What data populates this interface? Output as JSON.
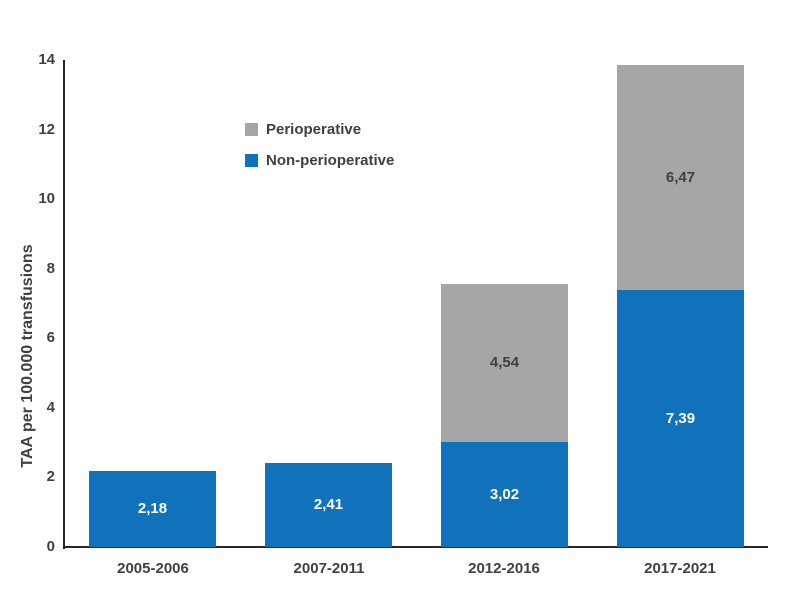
{
  "chart_data": {
    "type": "bar",
    "stacked": true,
    "title": "",
    "xlabel": "",
    "ylabel": "TAA per 100.000 transfusions",
    "ylim": [
      0,
      14
    ],
    "yticks": [
      0,
      2,
      4,
      6,
      8,
      10,
      12,
      14
    ],
    "grid": false,
    "legend_position": "upper-left-inside",
    "decimal_separator": ",",
    "categories": [
      "2005-2006",
      "2007-2011",
      "2012-2016",
      "2017-2021"
    ],
    "series": [
      {
        "name": "Non-perioperative",
        "color": "#1172BC",
        "label_color": "#FFFFFF",
        "values": [
          2.18,
          2.41,
          3.02,
          7.39
        ],
        "labels": [
          "2,18",
          "2,41",
          "3,02",
          "7,39"
        ]
      },
      {
        "name": "Perioperative",
        "color": "#A6A6A6",
        "label_color": "#404040",
        "values": [
          0,
          0,
          4.54,
          6.47
        ],
        "labels": [
          "",
          "",
          "4,54",
          "6,47"
        ]
      }
    ],
    "totals": [
      2.18,
      2.41,
      7.56,
      13.86
    ]
  },
  "legend": [
    {
      "label": "Perioperative",
      "color": "#A6A6A6"
    },
    {
      "label": "Non-perioperative",
      "color": "#1172BC"
    }
  ],
  "colors": {
    "axis_line": "#262626",
    "text_dark": "#404040",
    "background": "#FFFFFF"
  }
}
